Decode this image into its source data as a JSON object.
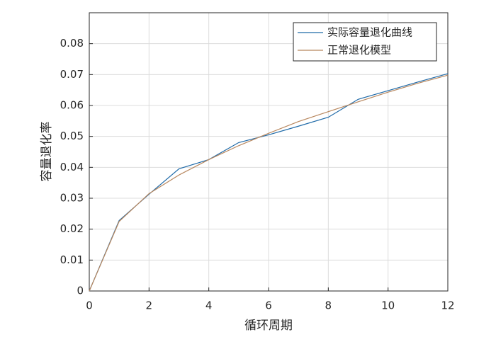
{
  "chart_data": {
    "type": "line",
    "x_label": "循环周期",
    "y_label": "容量退化率",
    "x": [
      0,
      1,
      2,
      3,
      4,
      5,
      6,
      7,
      8,
      9,
      10,
      11,
      12
    ],
    "series": [
      {
        "name": "实际容量退化曲线",
        "color": "#1f6aa8",
        "values": [
          0,
          0.0228,
          0.0313,
          0.0395,
          0.0425,
          0.048,
          0.0505,
          0.0533,
          0.0562,
          0.062,
          0.0648,
          0.0676,
          0.0703
        ]
      },
      {
        "name": "正常退化模型",
        "color": "#b8875e",
        "values": [
          0,
          0.0225,
          0.0315,
          0.0375,
          0.0425,
          0.047,
          0.051,
          0.0548,
          0.058,
          0.0612,
          0.0643,
          0.0672,
          0.0698
        ]
      }
    ],
    "xlim": [
      0,
      12
    ],
    "xticks": [
      0,
      2,
      4,
      6,
      8,
      10,
      12
    ],
    "ylim": [
      0,
      0.09
    ],
    "yticks": [
      0,
      0.01,
      0.02,
      0.03,
      0.04,
      0.05,
      0.06,
      0.07,
      0.08
    ],
    "grid": true,
    "legend": "top-right"
  }
}
